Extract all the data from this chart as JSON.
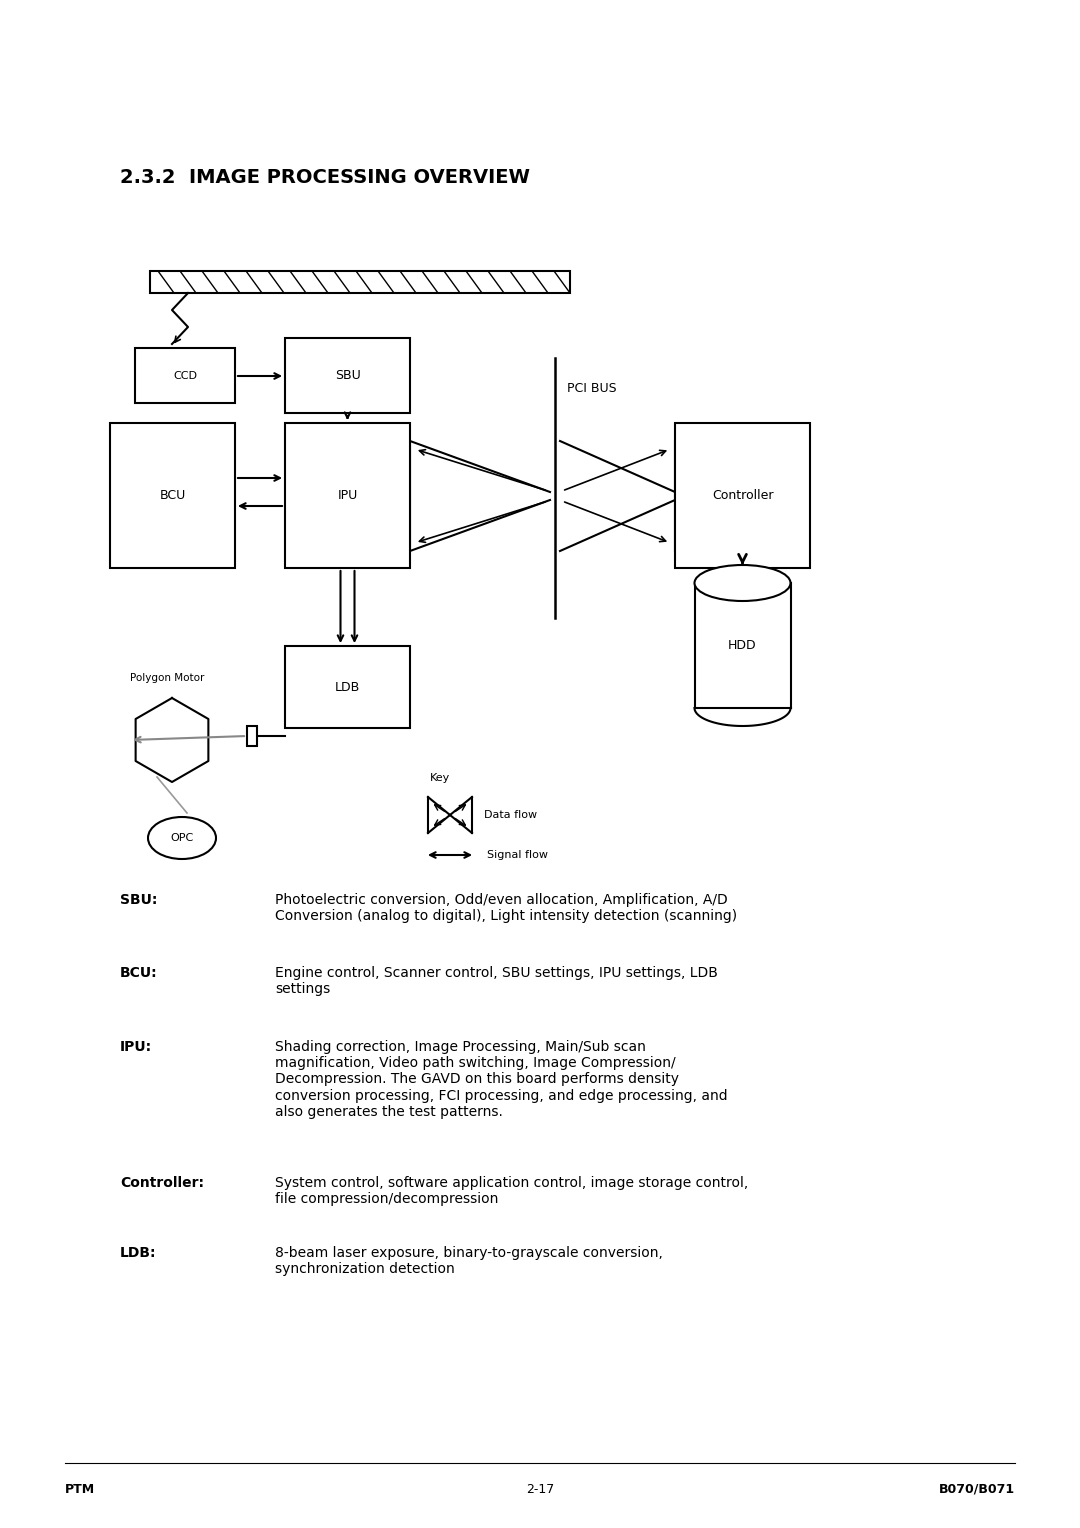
{
  "title": "2.3.2  IMAGE PROCESSING OVERVIEW",
  "background_color": "#ffffff",
  "page_width": 10.8,
  "page_height": 15.28,
  "descriptions": {
    "SBU": {
      "label": "SBU:",
      "text": "Photoelectric conversion, Odd/even allocation, Amplification, A/D\nConversion (analog to digital), Light intensity detection (scanning)"
    },
    "BCU": {
      "label": "BCU:",
      "text": "Engine control, Scanner control, SBU settings, IPU settings, LDB\nsettings"
    },
    "IPU": {
      "label": "IPU:",
      "text": "Shading correction, Image Processing, Main/Sub scan\nmagnification, Video path switching, Image Compression/\nDecompression. The GAVD on this board performs density\nconversion processing, FCI processing, and edge processing, and\nalso generates the test patterns."
    },
    "Controller": {
      "label": "Controller:",
      "text": "System control, software application control, image storage control,\nfile compression/decompression"
    },
    "LDB": {
      "label": "LDB:",
      "text": "8-beam laser exposure, binary-to-grayscale conversion,\nsynchronization detection"
    }
  },
  "footer": {
    "left": "PTM",
    "center": "2-17",
    "right": "B070/B071"
  }
}
